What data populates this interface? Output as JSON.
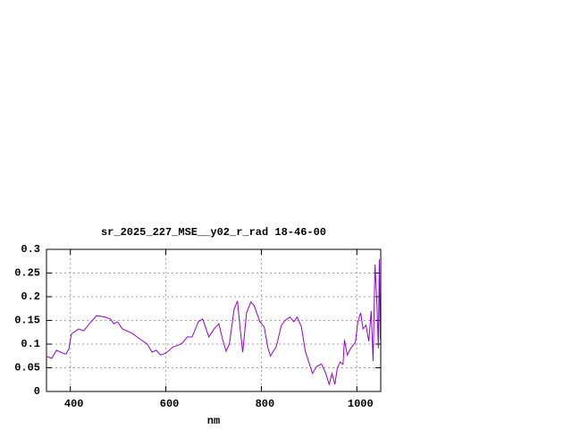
{
  "chart_data": {
    "type": "line",
    "title": "sr_2025_227_MSE__y02_r_rad 18-46-00",
    "x_label": "nm",
    "xlim": [
      350,
      1050
    ],
    "xticks": [
      400,
      600,
      800,
      1000
    ],
    "ylim": [
      0,
      0.3
    ],
    "yticks": [
      0,
      0.05,
      0.1,
      0.15,
      0.2,
      0.25,
      0.3
    ],
    "grid": true,
    "series": [
      {
        "color": "#9400d3",
        "x": [
          350,
          361,
          371,
          384,
          391,
          397,
          402,
          417,
          428,
          440,
          455,
          473,
          484,
          491,
          499,
          509,
          529,
          548,
          561,
          571,
          580,
          589,
          600,
          615,
          627,
          634,
          645,
          655,
          668,
          677,
          683,
          690,
          701,
          711,
          718,
          726,
          733,
          743,
          750,
          755,
          761,
          769,
          778,
          785,
          797,
          806,
          814,
          819,
          831,
          842,
          851,
          860,
          868,
          875,
          884,
          892,
          901,
          907,
          916,
          926,
          935,
          942,
          948,
          954,
          959,
          965,
          971,
          974,
          980,
          987,
          997,
          1002,
          1008,
          1013,
          1019,
          1025,
          1030,
          1034,
          1038,
          1042,
          1045,
          1047,
          1049
        ],
        "values": [
          0.074,
          0.07,
          0.087,
          0.081,
          0.079,
          0.09,
          0.121,
          0.132,
          0.128,
          0.143,
          0.16,
          0.157,
          0.153,
          0.143,
          0.147,
          0.132,
          0.123,
          0.109,
          0.1,
          0.083,
          0.087,
          0.077,
          0.081,
          0.094,
          0.098,
          0.102,
          0.115,
          0.115,
          0.147,
          0.153,
          0.136,
          0.115,
          0.132,
          0.143,
          0.113,
          0.085,
          0.1,
          0.174,
          0.191,
          0.138,
          0.083,
          0.166,
          0.189,
          0.181,
          0.147,
          0.136,
          0.091,
          0.075,
          0.094,
          0.14,
          0.151,
          0.157,
          0.147,
          0.157,
          0.136,
          0.085,
          0.057,
          0.038,
          0.053,
          0.058,
          0.038,
          0.015,
          0.038,
          0.015,
          0.049,
          0.062,
          0.057,
          0.109,
          0.077,
          0.091,
          0.104,
          0.147,
          0.166,
          0.132,
          0.14,
          0.106,
          0.17,
          0.064,
          0.268,
          0.185,
          0.091,
          0.279,
          0.109
        ]
      }
    ]
  }
}
